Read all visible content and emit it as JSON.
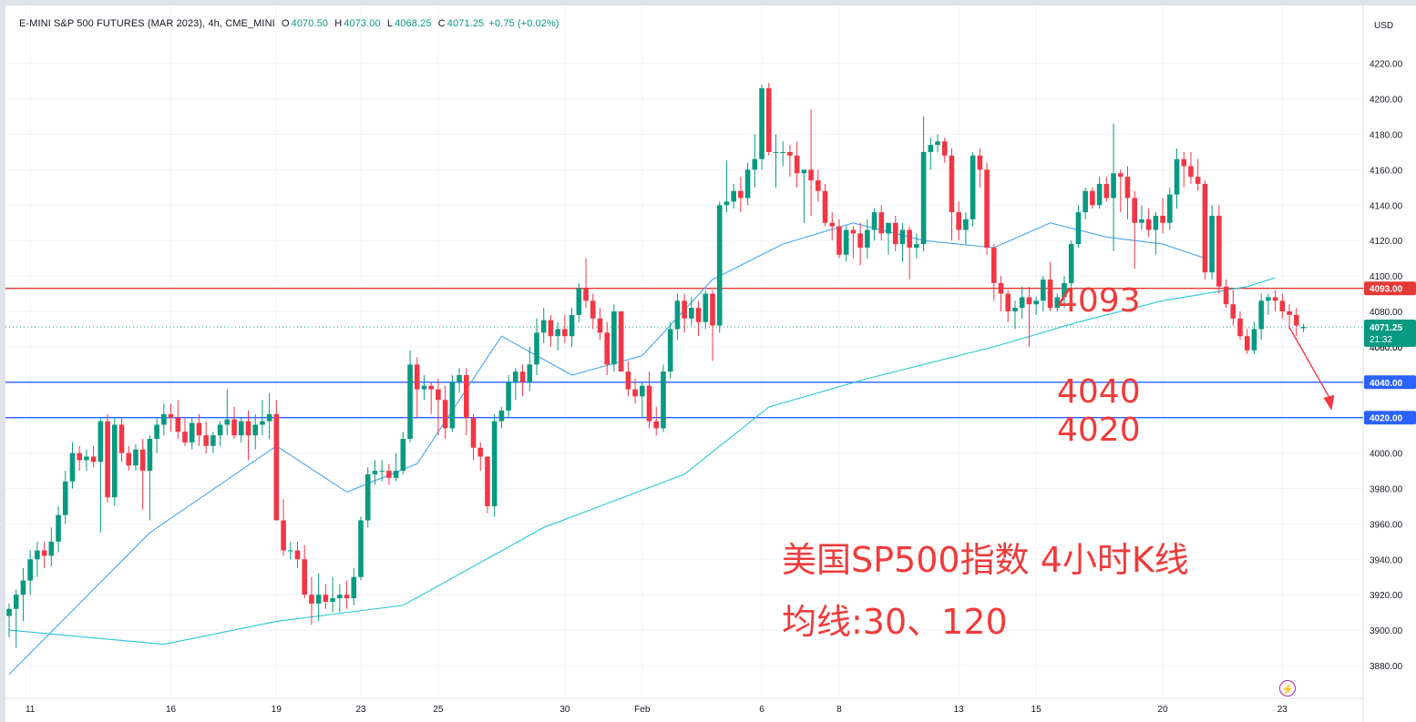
{
  "header": {
    "symbol": "E-MINI S&P 500 FUTURES (MAR 2023), 4h, CME_MINI",
    "open_label": "O",
    "open": "4070.50",
    "high_label": "H",
    "high": "4073.00",
    "low_label": "L",
    "low": "4068.25",
    "close_label": "C",
    "close": "4071.25",
    "change": "+0.75 (+0.02%)"
  },
  "currency": "USD",
  "price_tags": {
    "resistance": "4093.00",
    "last": "4071.25",
    "countdown": "21:32",
    "support_1": "4040.00",
    "support_2": "4020.00",
    "hidden_partial": "4060.00"
  },
  "annotations": {
    "level_1": "4093",
    "level_2": "4040",
    "level_3": "4020",
    "title": "美国SP500指数 4小时K线",
    "subtitle": "均线:30、120"
  },
  "colors": {
    "up": "#089981",
    "down": "#f23645",
    "resistance_line": "#e53935",
    "support_line": "#2962ff",
    "ma30": "#42a5f5",
    "ma120": "#26c6da",
    "annotation": "#ef3b3b"
  },
  "chart_data": {
    "type": "candlestick",
    "timeframe": "4h",
    "ylim": [
      3868,
      4230
    ],
    "y_ticks": [
      "3880.00",
      "3900.00",
      "3920.00",
      "3940.00",
      "3960.00",
      "3980.00",
      "4000.00",
      "4020.00",
      "4040.00",
      "4060.00",
      "4080.00",
      "4100.00",
      "4120.00",
      "4140.00",
      "4160.00",
      "4180.00",
      "4200.00",
      "4220.00"
    ],
    "x_ticks": [
      {
        "label": "11",
        "bar": 3
      },
      {
        "label": "16",
        "bar": 23
      },
      {
        "label": "19",
        "bar": 38
      },
      {
        "label": "23",
        "bar": 50
      },
      {
        "label": "25",
        "bar": 61
      },
      {
        "label": "30",
        "bar": 79
      },
      {
        "label": "Feb",
        "bar": 90
      },
      {
        "label": "6",
        "bar": 107
      },
      {
        "label": "8",
        "bar": 118
      },
      {
        "label": "13",
        "bar": 135
      },
      {
        "label": "15",
        "bar": 146
      },
      {
        "label": "20",
        "bar": 164
      },
      {
        "label": "23",
        "bar": 181
      }
    ],
    "horizontal_levels": [
      4093,
      4040,
      4020
    ],
    "ohlc": [
      [
        3908,
        3915,
        3896,
        3912
      ],
      [
        3912,
        3923,
        3890,
        3920
      ],
      [
        3920,
        3935,
        3905,
        3928
      ],
      [
        3928,
        3945,
        3920,
        3940
      ],
      [
        3940,
        3950,
        3930,
        3945
      ],
      [
        3945,
        3950,
        3935,
        3942
      ],
      [
        3942,
        3958,
        3936,
        3950
      ],
      [
        3950,
        3970,
        3944,
        3965
      ],
      [
        3965,
        3990,
        3960,
        3984
      ],
      [
        3984,
        4006,
        3980,
        4000
      ],
      [
        4000,
        4004,
        3990,
        3996
      ],
      [
        3996,
        4002,
        3990,
        3998
      ],
      [
        3998,
        4004,
        3992,
        3995
      ],
      [
        3995,
        4020,
        3955,
        4018
      ],
      [
        4018,
        4022,
        3972,
        3975
      ],
      [
        3975,
        4020,
        3970,
        4016
      ],
      [
        4016,
        4020,
        3995,
        4000
      ],
      [
        4000,
        4004,
        3990,
        3993
      ],
      [
        3993,
        4005,
        3990,
        4002
      ],
      [
        4002,
        4008,
        3968,
        3990
      ],
      [
        3990,
        4010,
        3962,
        4008
      ],
      [
        4008,
        4020,
        4000,
        4016
      ],
      [
        4016,
        4028,
        4010,
        4022
      ],
      [
        4022,
        4028,
        4012,
        4020
      ],
      [
        4020,
        4030,
        4008,
        4012
      ],
      [
        4012,
        4020,
        4004,
        4006
      ],
      [
        4006,
        4020,
        4002,
        4017
      ],
      [
        4017,
        4022,
        4004,
        4010
      ],
      [
        4010,
        4018,
        4000,
        4004
      ],
      [
        4004,
        4012,
        4000,
        4010
      ],
      [
        4010,
        4018,
        4004,
        4016
      ],
      [
        4016,
        4036,
        4010,
        4019
      ],
      [
        4019,
        4026,
        4008,
        4010
      ],
      [
        4010,
        4020,
        4006,
        4018
      ],
      [
        4018,
        4024,
        3996,
        4010
      ],
      [
        4010,
        4022,
        4002,
        4016
      ],
      [
        4016,
        4030,
        4010,
        4018
      ],
      [
        4018,
        4034,
        4008,
        4022
      ],
      [
        4022,
        4030,
        3962,
        3962
      ],
      [
        3962,
        3974,
        3942,
        3945
      ],
      [
        3945,
        3950,
        3940,
        3945
      ],
      [
        3945,
        3950,
        3935,
        3940
      ],
      [
        3940,
        3948,
        3918,
        3920
      ],
      [
        3920,
        3930,
        3903,
        3915
      ],
      [
        3915,
        3932,
        3905,
        3920
      ],
      [
        3920,
        3926,
        3912,
        3916
      ],
      [
        3916,
        3930,
        3910,
        3918
      ],
      [
        3918,
        3926,
        3910,
        3920
      ],
      [
        3920,
        3928,
        3912,
        3918
      ],
      [
        3918,
        3935,
        3914,
        3930
      ],
      [
        3930,
        3964,
        3928,
        3962
      ],
      [
        3962,
        3992,
        3958,
        3988
      ],
      [
        3988,
        3996,
        3982,
        3990
      ],
      [
        3990,
        3996,
        3984,
        3990
      ],
      [
        3990,
        3994,
        3982,
        3986
      ],
      [
        3986,
        4000,
        3984,
        3990
      ],
      [
        3990,
        4012,
        3988,
        4008
      ],
      [
        4008,
        4058,
        4006,
        4050
      ],
      [
        4050,
        4054,
        4020,
        4036
      ],
      [
        4036,
        4044,
        4030,
        4038
      ],
      [
        4038,
        4040,
        4022,
        4036
      ],
      [
        4036,
        4042,
        4010,
        4030
      ],
      [
        4030,
        4038,
        4008,
        4014
      ],
      [
        4014,
        4044,
        4012,
        4040
      ],
      [
        4040,
        4048,
        4034,
        4044
      ],
      [
        4044,
        4048,
        4010,
        4020
      ],
      [
        4020,
        4022,
        3996,
        4003
      ],
      [
        4003,
        4006,
        3990,
        3998
      ],
      [
        3998,
        3998,
        3966,
        3970
      ],
      [
        3970,
        4022,
        3964,
        4018
      ],
      [
        4018,
        4026,
        4014,
        4024
      ],
      [
        4024,
        4044,
        4020,
        4040
      ],
      [
        4040,
        4048,
        4030,
        4046
      ],
      [
        4046,
        4050,
        4032,
        4040
      ],
      [
        4040,
        4060,
        4035,
        4050
      ],
      [
        4050,
        4076,
        4044,
        4068
      ],
      [
        4068,
        4082,
        4062,
        4075
      ],
      [
        4075,
        4078,
        4060,
        4066
      ],
      [
        4066,
        4074,
        4058,
        4070
      ],
      [
        4070,
        4078,
        4062,
        4066
      ],
      [
        4066,
        4082,
        4060,
        4078
      ],
      [
        4078,
        4096,
        4074,
        4093
      ],
      [
        4093,
        4110,
        4082,
        4086
      ],
      [
        4086,
        4090,
        4070,
        4076
      ],
      [
        4076,
        4082,
        4064,
        4068
      ],
      [
        4068,
        4074,
        4044,
        4050
      ],
      [
        4050,
        4084,
        4046,
        4080
      ],
      [
        4080,
        4080,
        4048,
        4046
      ],
      [
        4046,
        4052,
        4032,
        4036
      ],
      [
        4036,
        4042,
        4028,
        4032
      ],
      [
        4032,
        4040,
        4020,
        4038
      ],
      [
        4038,
        4046,
        4014,
        4018
      ],
      [
        4018,
        4026,
        4010,
        4014
      ],
      [
        4014,
        4050,
        4012,
        4046
      ],
      [
        4046,
        4074,
        4042,
        4070
      ],
      [
        4070,
        4090,
        4064,
        4086
      ],
      [
        4086,
        4090,
        4068,
        4076
      ],
      [
        4076,
        4088,
        4072,
        4082
      ],
      [
        4082,
        4086,
        4066,
        4074
      ],
      [
        4074,
        4092,
        4070,
        4090
      ],
      [
        4090,
        4092,
        4052,
        4072
      ],
      [
        4072,
        4142,
        4068,
        4140
      ],
      [
        4140,
        4165,
        4136,
        4142
      ],
      [
        4142,
        4152,
        4138,
        4148
      ],
      [
        4148,
        4156,
        4136,
        4144
      ],
      [
        4144,
        4164,
        4140,
        4160
      ],
      [
        4160,
        4180,
        4150,
        4166
      ],
      [
        4166,
        4208,
        4160,
        4206
      ],
      [
        4206,
        4209,
        4168,
        4170
      ],
      [
        4170,
        4180,
        4150,
        4170
      ],
      [
        4170,
        4176,
        4162,
        4170
      ],
      [
        4170,
        4174,
        4156,
        4168
      ],
      [
        4168,
        4176,
        4150,
        4158
      ],
      [
        4158,
        4160,
        4130,
        4160
      ],
      [
        4160,
        4194,
        4134,
        4154
      ],
      [
        4154,
        4160,
        4142,
        4148
      ],
      [
        4148,
        4152,
        4128,
        4130
      ],
      [
        4130,
        4136,
        4120,
        4128
      ],
      [
        4128,
        4132,
        4110,
        4112
      ],
      [
        4112,
        4128,
        4108,
        4126
      ],
      [
        4126,
        4128,
        4110,
        4124
      ],
      [
        4124,
        4130,
        4106,
        4116
      ],
      [
        4116,
        4132,
        4110,
        4126
      ],
      [
        4126,
        4138,
        4120,
        4136
      ],
      [
        4136,
        4140,
        4120,
        4124
      ],
      [
        4124,
        4128,
        4112,
        4130
      ],
      [
        4130,
        4134,
        4114,
        4118
      ],
      [
        4118,
        4130,
        4108,
        4126
      ],
      [
        4126,
        4128,
        4098,
        4116
      ],
      [
        4116,
        4124,
        4110,
        4118
      ],
      [
        4118,
        4190,
        4114,
        4170
      ],
      [
        4170,
        4178,
        4160,
        4174
      ],
      [
        4174,
        4180,
        4170,
        4176
      ],
      [
        4176,
        4178,
        4164,
        4168
      ],
      [
        4168,
        4172,
        4120,
        4136
      ],
      [
        4136,
        4142,
        4120,
        4126
      ],
      [
        4126,
        4136,
        4118,
        4132
      ],
      [
        4132,
        4170,
        4128,
        4168
      ],
      [
        4168,
        4172,
        4150,
        4160
      ],
      [
        4160,
        4164,
        4112,
        4116
      ],
      [
        4116,
        4118,
        4086,
        4096
      ],
      [
        4096,
        4100,
        4080,
        4090
      ],
      [
        4090,
        4092,
        4074,
        4080
      ],
      [
        4080,
        4086,
        4070,
        4082
      ],
      [
        4082,
        4094,
        4076,
        4088
      ],
      [
        4088,
        4094,
        4060,
        4084
      ],
      [
        4084,
        4088,
        4078,
        4086
      ],
      [
        4086,
        4100,
        4080,
        4098
      ],
      [
        4098,
        4108,
        4080,
        4082
      ],
      [
        4082,
        4090,
        4080,
        4088
      ],
      [
        4088,
        4100,
        4082,
        4096
      ],
      [
        4096,
        4120,
        4092,
        4118
      ],
      [
        4118,
        4140,
        4116,
        4136
      ],
      [
        4136,
        4150,
        4132,
        4148
      ],
      [
        4148,
        4150,
        4138,
        4140
      ],
      [
        4140,
        4156,
        4138,
        4152
      ],
      [
        4152,
        4156,
        4142,
        4144
      ],
      [
        4144,
        4186,
        4114,
        4158
      ],
      [
        4158,
        4160,
        4136,
        4156
      ],
      [
        4156,
        4162,
        4132,
        4144
      ],
      [
        4144,
        4148,
        4104,
        4130
      ],
      [
        4130,
        4140,
        4126,
        4132
      ],
      [
        4132,
        4138,
        4122,
        4126
      ],
      [
        4126,
        4136,
        4112,
        4134
      ],
      [
        4134,
        4144,
        4124,
        4130
      ],
      [
        4130,
        4150,
        4126,
        4146
      ],
      [
        4146,
        4172,
        4138,
        4166
      ],
      [
        4166,
        4170,
        4150,
        4162
      ],
      [
        4162,
        4170,
        4152,
        4156
      ],
      [
        4156,
        4166,
        4148,
        4152
      ],
      [
        4152,
        4154,
        4098,
        4102
      ],
      [
        4102,
        4140,
        4098,
        4134
      ],
      [
        4134,
        4140,
        4090,
        4094
      ],
      [
        4094,
        4098,
        4082,
        4084
      ],
      [
        4084,
        4092,
        4072,
        4076
      ],
      [
        4076,
        4080,
        4064,
        4066
      ],
      [
        4066,
        4070,
        4056,
        4058
      ],
      [
        4058,
        4074,
        4056,
        4070
      ],
      [
        4070,
        4090,
        4064,
        4086
      ],
      [
        4086,
        4090,
        4078,
        4088
      ],
      [
        4088,
        4092,
        4080,
        4086
      ],
      [
        4086,
        4090,
        4076,
        4080
      ],
      [
        4080,
        4084,
        4070,
        4078
      ],
      [
        4078,
        4082,
        4066,
        4072
      ],
      [
        4070.5,
        4073,
        4068.25,
        4071.25
      ]
    ],
    "ma30": [
      [
        0,
        3875
      ],
      [
        20,
        3955
      ],
      [
        38,
        4004
      ],
      [
        48,
        3978
      ],
      [
        58,
        3994
      ],
      [
        70,
        4066
      ],
      [
        80,
        4044
      ],
      [
        90,
        4055
      ],
      [
        100,
        4098
      ],
      [
        110,
        4118
      ],
      [
        120,
        4130
      ],
      [
        130,
        4120
      ],
      [
        140,
        4116
      ],
      [
        148,
        4130
      ],
      [
        156,
        4122
      ],
      [
        164,
        4118
      ],
      [
        170,
        4110
      ]
    ],
    "ma120": [
      [
        0,
        3900
      ],
      [
        22,
        3892
      ],
      [
        38,
        3905
      ],
      [
        56,
        3914
      ],
      [
        76,
        3958
      ],
      [
        96,
        3988
      ],
      [
        108,
        4026
      ],
      [
        122,
        4042
      ],
      [
        140,
        4060
      ],
      [
        152,
        4074
      ],
      [
        164,
        4086
      ],
      [
        176,
        4094
      ],
      [
        180,
        4099
      ]
    ],
    "projection_arrow": {
      "from_bar": 182,
      "from_price": 4071,
      "to_bar": 188,
      "to_price": 4024
    }
  }
}
